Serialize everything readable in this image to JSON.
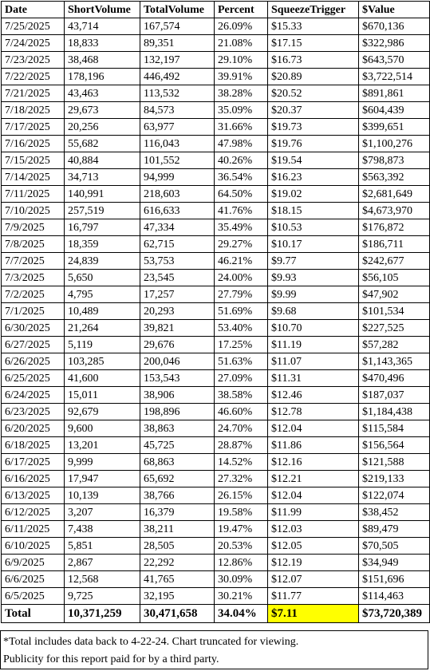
{
  "table": {
    "headers": [
      "Date",
      "ShortVolume",
      "TotalVolume",
      "Percent",
      "SqueezeTrigger",
      "$Value"
    ],
    "rows": [
      [
        "7/25/2025",
        "43,714",
        "167,574",
        "26.09%",
        "$15.33",
        "$670,136"
      ],
      [
        "7/24/2025",
        "18,833",
        "89,351",
        "21.08%",
        "$17.15",
        "$322,986"
      ],
      [
        "7/23/2025",
        "38,468",
        "132,197",
        "29.10%",
        "$16.73",
        "$643,570"
      ],
      [
        "7/22/2025",
        "178,196",
        "446,492",
        "39.91%",
        "$20.89",
        "$3,722,514"
      ],
      [
        "7/21/2025",
        "43,463",
        "113,532",
        "38.28%",
        "$20.52",
        "$891,861"
      ],
      [
        "7/18/2025",
        "29,673",
        "84,573",
        "35.09%",
        "$20.37",
        "$604,439"
      ],
      [
        "7/17/2025",
        "20,256",
        "63,977",
        "31.66%",
        "$19.73",
        "$399,651"
      ],
      [
        "7/16/2025",
        "55,682",
        "116,043",
        "47.98%",
        "$19.76",
        "$1,100,276"
      ],
      [
        "7/15/2025",
        "40,884",
        "101,552",
        "40.26%",
        "$19.54",
        "$798,873"
      ],
      [
        "7/14/2025",
        "34,713",
        "94,999",
        "36.54%",
        "$16.23",
        "$563,392"
      ],
      [
        "7/11/2025",
        "140,991",
        "218,603",
        "64.50%",
        "$19.02",
        "$2,681,649"
      ],
      [
        "7/10/2025",
        "257,519",
        "616,633",
        "41.76%",
        "$18.15",
        "$4,673,970"
      ],
      [
        "7/9/2025",
        "16,797",
        "47,334",
        "35.49%",
        "$10.53",
        "$176,872"
      ],
      [
        "7/8/2025",
        "18,359",
        "62,715",
        "29.27%",
        "$10.17",
        "$186,711"
      ],
      [
        "7/7/2025",
        "24,839",
        "53,753",
        "46.21%",
        "$9.77",
        "$242,677"
      ],
      [
        "7/3/2025",
        "5,650",
        "23,545",
        "24.00%",
        "$9.93",
        "$56,105"
      ],
      [
        "7/2/2025",
        "4,795",
        "17,257",
        "27.79%",
        "$9.99",
        "$47,902"
      ],
      [
        "7/1/2025",
        "10,489",
        "20,293",
        "51.69%",
        "$9.68",
        "$101,534"
      ],
      [
        "6/30/2025",
        "21,264",
        "39,821",
        "53.40%",
        "$10.70",
        "$227,525"
      ],
      [
        "6/27/2025",
        "5,119",
        "29,676",
        "17.25%",
        "$11.19",
        "$57,282"
      ],
      [
        "6/26/2025",
        "103,285",
        "200,046",
        "51.63%",
        "$11.07",
        "$1,143,365"
      ],
      [
        "6/25/2025",
        "41,600",
        "153,543",
        "27.09%",
        "$11.31",
        "$470,496"
      ],
      [
        "6/24/2025",
        "15,011",
        "38,906",
        "38.58%",
        "$12.46",
        "$187,037"
      ],
      [
        "6/23/2025",
        "92,679",
        "198,896",
        "46.60%",
        "$12.78",
        "$1,184,438"
      ],
      [
        "6/20/2025",
        "9,600",
        "38,863",
        "24.70%",
        "$12.04",
        "$115,584"
      ],
      [
        "6/18/2025",
        "13,201",
        "45,725",
        "28.87%",
        "$11.86",
        "$156,564"
      ],
      [
        "6/17/2025",
        "9,999",
        "68,863",
        "14.52%",
        "$12.16",
        "$121,588"
      ],
      [
        "6/16/2025",
        "17,947",
        "65,692",
        "27.32%",
        "$12.21",
        "$219,133"
      ],
      [
        "6/13/2025",
        "10,139",
        "38,766",
        "26.15%",
        "$12.04",
        "$122,074"
      ],
      [
        "6/12/2025",
        "3,207",
        "16,379",
        "19.58%",
        "$11.99",
        "$38,452"
      ],
      [
        "6/11/2025",
        "7,438",
        "38,211",
        "19.47%",
        "$12.03",
        "$89,479"
      ],
      [
        "6/10/2025",
        "5,851",
        "28,505",
        "20.53%",
        "$12.05",
        "$70,505"
      ],
      [
        "6/9/2025",
        "2,867",
        "22,292",
        "12.86%",
        "$12.19",
        "$34,949"
      ],
      [
        "6/6/2025",
        "12,568",
        "41,765",
        "30.09%",
        "$12.07",
        "$151,696"
      ],
      [
        "6/5/2025",
        "9,725",
        "32,195",
        "30.21%",
        "$11.77",
        "$114,463"
      ]
    ],
    "total": [
      "Total",
      "10,371,259",
      "30,471,658",
      "34.04%",
      "$7.11",
      "$73,720,389"
    ],
    "highlight_color": "#ffff00"
  },
  "footnote": {
    "line1": "*Total includes data back to 4-22-24. Chart truncated for viewing.",
    "line2": "Publicity for this report paid for by a third party."
  }
}
